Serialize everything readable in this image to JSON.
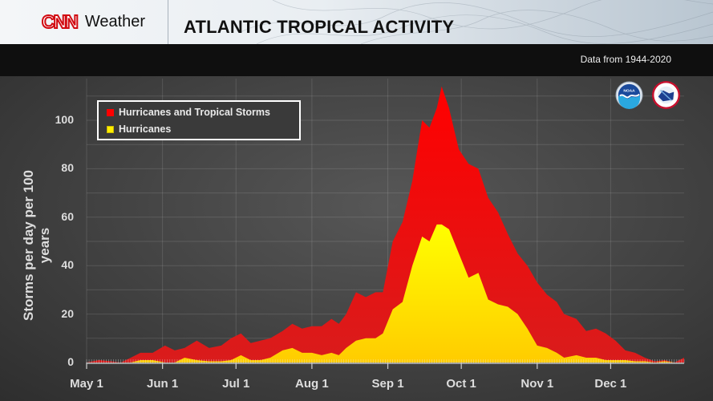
{
  "header": {
    "brand_logo": "CNN",
    "brand_name": "Weather",
    "title": "ATLANTIC TROPICAL ACTIVITY"
  },
  "subheader": {
    "source_note": "Data from 1944-2020"
  },
  "logos": [
    {
      "name": "noaa-logo",
      "text": "NOAA"
    },
    {
      "name": "nws-logo",
      "text": "National Weather Service"
    }
  ],
  "colors": {
    "hurricanes_and_tropical_storms": "#ff0000",
    "hurricanes": "#ffee00",
    "background": "#454545",
    "brand_red": "#d10a11"
  },
  "chart_data": {
    "type": "area",
    "title": "ATLANTIC TROPICAL ACTIVITY",
    "subtitle": "Data from 1944-2020",
    "xlabel": "",
    "ylabel": "Storms per day per 100 years",
    "ylim": [
      0,
      110
    ],
    "yticks": [
      0,
      20,
      40,
      60,
      80,
      100
    ],
    "xticks": [
      "May 1",
      "Jun 1",
      "Jul 1",
      "Aug 1",
      "Sep 1",
      "Oct 1",
      "Nov 1",
      "Dec 1"
    ],
    "xtick_days": [
      0,
      31,
      61,
      92,
      123,
      153,
      184,
      214
    ],
    "x_unit": "days since May 1",
    "grid": true,
    "legend_position": "upper-left",
    "x": [
      0,
      5,
      10,
      14,
      18,
      22,
      27,
      32,
      36,
      40,
      45,
      50,
      55,
      59,
      63,
      67,
      71,
      75,
      80,
      84,
      88,
      92,
      96,
      100,
      103,
      106,
      110,
      114,
      118,
      121,
      125,
      129,
      133,
      137,
      140,
      143,
      145,
      148,
      152,
      156,
      160,
      164,
      168,
      172,
      176,
      180,
      184,
      188,
      192,
      195,
      200,
      204,
      208,
      212,
      216,
      220,
      224,
      228,
      232,
      236,
      240,
      244
    ],
    "series": [
      {
        "name": "Hurricanes and Tropical Storms",
        "color": "#ff0000",
        "values": [
          0,
          1,
          0.5,
          0,
          2,
          4,
          4,
          7,
          5,
          6,
          9,
          6,
          7,
          10,
          12,
          8,
          9,
          10,
          13,
          16,
          14,
          15,
          15,
          18,
          16,
          20,
          29,
          27,
          29,
          29,
          50,
          58,
          75,
          100,
          97,
          105,
          114,
          105,
          88,
          82,
          80,
          68,
          62,
          53,
          45,
          40,
          33,
          28,
          25,
          20,
          18,
          13,
          14,
          12,
          9,
          5,
          4,
          2,
          0.5,
          1,
          0,
          2
        ]
      },
      {
        "name": "Hurricanes",
        "color": "#ffee00",
        "values": [
          0,
          0,
          0,
          0,
          0,
          1,
          1,
          0,
          0,
          2,
          1,
          0.5,
          0.5,
          1,
          3,
          1,
          1,
          2,
          5,
          6,
          4,
          4,
          3,
          4,
          3,
          6,
          9,
          10,
          10,
          12,
          22,
          25,
          40,
          52,
          50,
          57,
          57,
          55,
          45,
          35,
          37,
          26,
          24,
          23,
          20,
          14,
          7,
          6,
          4,
          2,
          3,
          2,
          2,
          1,
          1,
          1,
          0.5,
          0.5,
          0,
          0.5,
          0,
          0
        ]
      }
    ]
  },
  "legend": {
    "items": [
      {
        "label": "Hurricanes and Tropical Storms",
        "color": "#ff0000"
      },
      {
        "label": "Hurricanes",
        "color": "#ffee00"
      }
    ]
  }
}
